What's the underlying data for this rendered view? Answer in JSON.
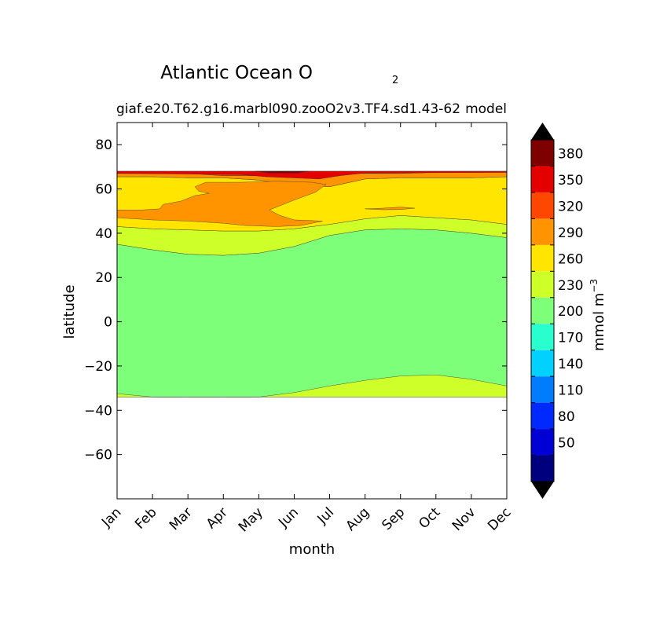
{
  "chart_data": {
    "type": "contour",
    "title_main": "Atlantic Ocean O",
    "title_sub": "2",
    "subtitle_left": "giaf.e20.T62.g16.marbl090.zooO2v3.TF4.sd1.43-62",
    "subtitle_right": "model",
    "xlabel": "month",
    "ylabel": "latitude",
    "x_ticks": [
      "Jan",
      "Feb",
      "Mar",
      "Apr",
      "May",
      "Jun",
      "Jul",
      "Aug",
      "Sep",
      "Oct",
      "Nov",
      "Dec"
    ],
    "xlim": [
      0,
      11
    ],
    "ylim": [
      -80,
      90
    ],
    "y_ticks": [
      80,
      60,
      40,
      20,
      0,
      -20,
      -40,
      -60
    ],
    "data_lat_range": [
      -34,
      68
    ],
    "colorbar": {
      "label": "mmol m",
      "label_exp": "−3",
      "levels": [
        20,
        50,
        80,
        110,
        140,
        170,
        200,
        230,
        260,
        290,
        320,
        350,
        380,
        410
      ],
      "tick_labels": [
        50,
        80,
        110,
        140,
        170,
        200,
        230,
        260,
        290,
        320,
        350,
        380
      ],
      "colors": [
        "#00007f",
        "#0000d5",
        "#0029ff",
        "#007dff",
        "#00d1ff",
        "#29ffce",
        "#7dff7a",
        "#ceff29",
        "#ffe500",
        "#ff9400",
        "#ff4700",
        "#e50000",
        "#7f0000"
      ],
      "extend": "both"
    },
    "bands": [
      {
        "name": "200-230",
        "lower": [
          -34,
          -34,
          -34,
          -34,
          -34,
          -34,
          -34,
          -34,
          -34,
          -34,
          -34,
          -34
        ],
        "upper": [
          35,
          32.5,
          30.5,
          30,
          31,
          34,
          39,
          41.5,
          42,
          41.5,
          40,
          38
        ]
      },
      {
        "name": "230-260",
        "lower": [
          35,
          32.5,
          30.5,
          30,
          31,
          34,
          39,
          41.5,
          42,
          41.5,
          40,
          38
        ],
        "upper": [
          43,
          42,
          41.5,
          41,
          41,
          42,
          44,
          46.5,
          48,
          47,
          46,
          44
        ]
      },
      {
        "name": "230-260 (south)",
        "lower": [
          -34,
          -34,
          -34,
          -34,
          -34,
          -34,
          -34,
          -34,
          -34,
          -34,
          -34,
          -34
        ],
        "upper": [
          -32.5,
          -34,
          -34,
          -34,
          -34,
          -32,
          -29,
          -26.5,
          -24.5,
          -24,
          -26,
          -29
        ]
      },
      {
        "name": "260-290",
        "lower": [
          43,
          42,
          41.5,
          41,
          41,
          42,
          44,
          46.5,
          48,
          47,
          46,
          44
        ],
        "upper": [
          65.5,
          65.5,
          65,
          65,
          64,
          62,
          61,
          64.5,
          65,
          65,
          65,
          65.5
        ]
      },
      {
        "name": "290-320 (north)",
        "lower": [
          65.5,
          65.5,
          65,
          65,
          64,
          62,
          61,
          64.5,
          65,
          65,
          65,
          65.5
        ],
        "upper": [
          67,
          67,
          67,
          66,
          66,
          66,
          67,
          67,
          67,
          67.5,
          67.5,
          67.5
        ]
      },
      {
        "name": "320-350",
        "lower": [
          67,
          67,
          67,
          66,
          66,
          66,
          67,
          67,
          67,
          67.5,
          67.5,
          67.5
        ],
        "upper": [
          68,
          68,
          68,
          68,
          68,
          68,
          68,
          68,
          68,
          68,
          68,
          68
        ]
      }
    ],
    "patches": [
      {
        "name": "290-320 (mid)",
        "level": "290-320",
        "points": [
          [
            0,
            50.5
          ],
          [
            0.7,
            50.5
          ],
          [
            1.2,
            51
          ],
          [
            1.3,
            53
          ],
          [
            1.8,
            54.5
          ],
          [
            2.2,
            57
          ],
          [
            2.6,
            58
          ],
          [
            2.3,
            59
          ],
          [
            2.2,
            61
          ],
          [
            2.5,
            63
          ],
          [
            3.5,
            63
          ],
          [
            4.5,
            63.5
          ],
          [
            5.5,
            63
          ],
          [
            5.9,
            62
          ],
          [
            5.6,
            58.5
          ],
          [
            5.0,
            55
          ],
          [
            4.3,
            50.5
          ],
          [
            4.6,
            48
          ],
          [
            5.0,
            46
          ],
          [
            5.8,
            45.5
          ],
          [
            5.2,
            43.5
          ],
          [
            4.5,
            43
          ],
          [
            3.6,
            43.5
          ],
          [
            3.0,
            44.5
          ],
          [
            2.0,
            45.5
          ],
          [
            1.0,
            46
          ],
          [
            0,
            47
          ]
        ]
      },
      {
        "name": "290-320 (Sep)",
        "level": "290-320",
        "points": [
          [
            7.0,
            51
          ],
          [
            7.5,
            51.3
          ],
          [
            8.0,
            51.8
          ],
          [
            8.4,
            51.3
          ],
          [
            8.0,
            50.7
          ],
          [
            7.5,
            50.6
          ]
        ]
      },
      {
        "name": "350-380",
        "level": "350-380",
        "points": [
          [
            0,
            68
          ],
          [
            11,
            68
          ],
          [
            11,
            67.5
          ],
          [
            7.0,
            67.2
          ],
          [
            6.3,
            66
          ],
          [
            5.7,
            64.5
          ],
          [
            4.2,
            65.5
          ],
          [
            3.5,
            66.5
          ],
          [
            0,
            67
          ]
        ]
      },
      {
        "name": "380-410",
        "level": "380-410",
        "points": [
          [
            3.9,
            68
          ],
          [
            5.4,
            68
          ],
          [
            5.1,
            67.2
          ],
          [
            4.3,
            67.2
          ]
        ]
      }
    ]
  }
}
